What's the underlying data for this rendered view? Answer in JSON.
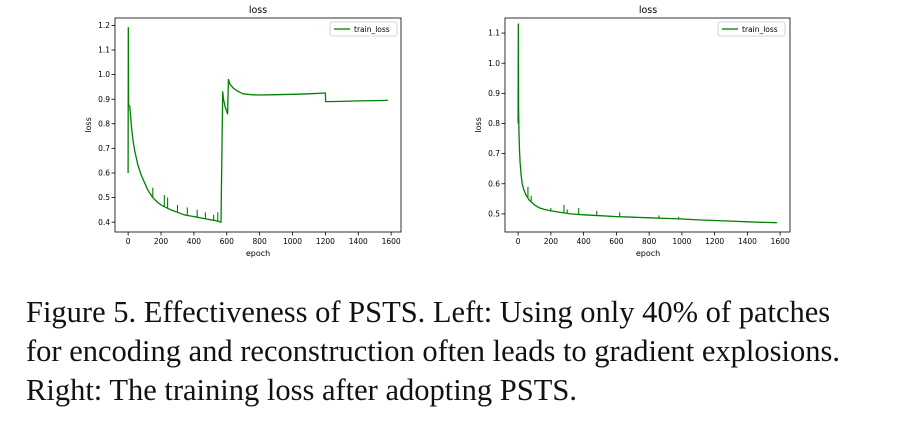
{
  "chart_data": [
    {
      "type": "line",
      "title": "loss",
      "xlabel": "epoch",
      "ylabel": "loss",
      "xlim": [
        -80,
        1660
      ],
      "ylim": [
        0.36,
        1.23
      ],
      "xticks": [
        0,
        200,
        400,
        600,
        800,
        1000,
        1200,
        1400,
        1600
      ],
      "yticks": [
        0.4,
        0.5,
        0.6,
        0.7,
        0.8,
        0.9,
        1.0,
        1.1,
        1.2
      ],
      "ytick_labels": [
        "0.4",
        "0.5",
        "0.6",
        "0.7",
        "0.8",
        "0.9",
        "1.0",
        "1.1",
        "1.2"
      ],
      "grid": false,
      "legend": "upper right",
      "series": [
        {
          "name": "train_loss",
          "color": "#008000",
          "x": [
            0,
            1,
            3,
            5,
            10,
            20,
            30,
            40,
            50,
            60,
            70,
            80,
            100,
            120,
            150,
            180,
            200,
            230,
            260,
            300,
            340,
            380,
            420,
            460,
            500,
            540,
            565,
            575,
            580,
            590,
            600,
            605,
            610,
            620,
            640,
            660,
            680,
            700,
            750,
            800,
            900,
            1000,
            1100,
            1200,
            1201,
            1300,
            1400,
            1500,
            1580
          ],
          "y": [
            0.6,
            1.19,
            0.88,
            0.875,
            0.87,
            0.79,
            0.73,
            0.69,
            0.66,
            0.63,
            0.61,
            0.59,
            0.56,
            0.53,
            0.5,
            0.48,
            0.47,
            0.46,
            0.45,
            0.44,
            0.43,
            0.425,
            0.42,
            0.415,
            0.41,
            0.405,
            0.4,
            0.93,
            0.9,
            0.87,
            0.85,
            0.84,
            0.98,
            0.96,
            0.945,
            0.935,
            0.928,
            0.922,
            0.918,
            0.917,
            0.918,
            0.92,
            0.922,
            0.925,
            0.89,
            0.891,
            0.893,
            0.894,
            0.895
          ],
          "spikes": [
            [
              150,
              0.54
            ],
            [
              220,
              0.51
            ],
            [
              240,
              0.5
            ],
            [
              300,
              0.47
            ],
            [
              360,
              0.46
            ],
            [
              420,
              0.45
            ],
            [
              470,
              0.44
            ],
            [
              520,
              0.43
            ],
            [
              545,
              0.44
            ]
          ]
        }
      ]
    },
    {
      "type": "line",
      "title": "loss",
      "xlabel": "epoch",
      "ylabel": "loss",
      "xlim": [
        -80,
        1660
      ],
      "ylim": [
        0.44,
        1.15
      ],
      "xticks": [
        0,
        200,
        400,
        600,
        800,
        1000,
        1200,
        1400,
        1600
      ],
      "yticks": [
        0.5,
        0.6,
        0.7,
        0.8,
        0.9,
        1.0,
        1.1
      ],
      "ytick_labels": [
        "0.5",
        "0.6",
        "0.7",
        "0.8",
        "0.9",
        "1.0",
        "1.1"
      ],
      "grid": false,
      "legend": "upper right",
      "series": [
        {
          "name": "train_loss",
          "color": "#008000",
          "x": [
            0,
            1,
            3,
            5,
            8,
            12,
            18,
            25,
            35,
            50,
            70,
            100,
            130,
            160,
            200,
            260,
            320,
            400,
            500,
            600,
            700,
            800,
            900,
            1000,
            1100,
            1200,
            1300,
            1400,
            1500,
            1580
          ],
          "y": [
            0.8,
            1.13,
            0.85,
            0.78,
            0.72,
            0.67,
            0.63,
            0.6,
            0.58,
            0.56,
            0.545,
            0.53,
            0.52,
            0.515,
            0.51,
            0.505,
            0.5,
            0.497,
            0.494,
            0.491,
            0.489,
            0.487,
            0.485,
            0.483,
            0.48,
            0.478,
            0.476,
            0.474,
            0.472,
            0.471
          ],
          "spikes": [
            [
              60,
              0.59
            ],
            [
              80,
              0.56
            ],
            [
              200,
              0.52
            ],
            [
              280,
              0.53
            ],
            [
              300,
              0.515
            ],
            [
              370,
              0.52
            ],
            [
              480,
              0.51
            ],
            [
              620,
              0.505
            ],
            [
              860,
              0.495
            ],
            [
              980,
              0.49
            ]
          ]
        }
      ]
    }
  ],
  "caption": {
    "line1": "Figure 5. Effectiveness of PSTS. Left: Using only 40% of patches",
    "line2": "for encoding and reconstruction often leads to gradient explosions.",
    "line3": "Right: The training loss after adopting PSTS."
  }
}
